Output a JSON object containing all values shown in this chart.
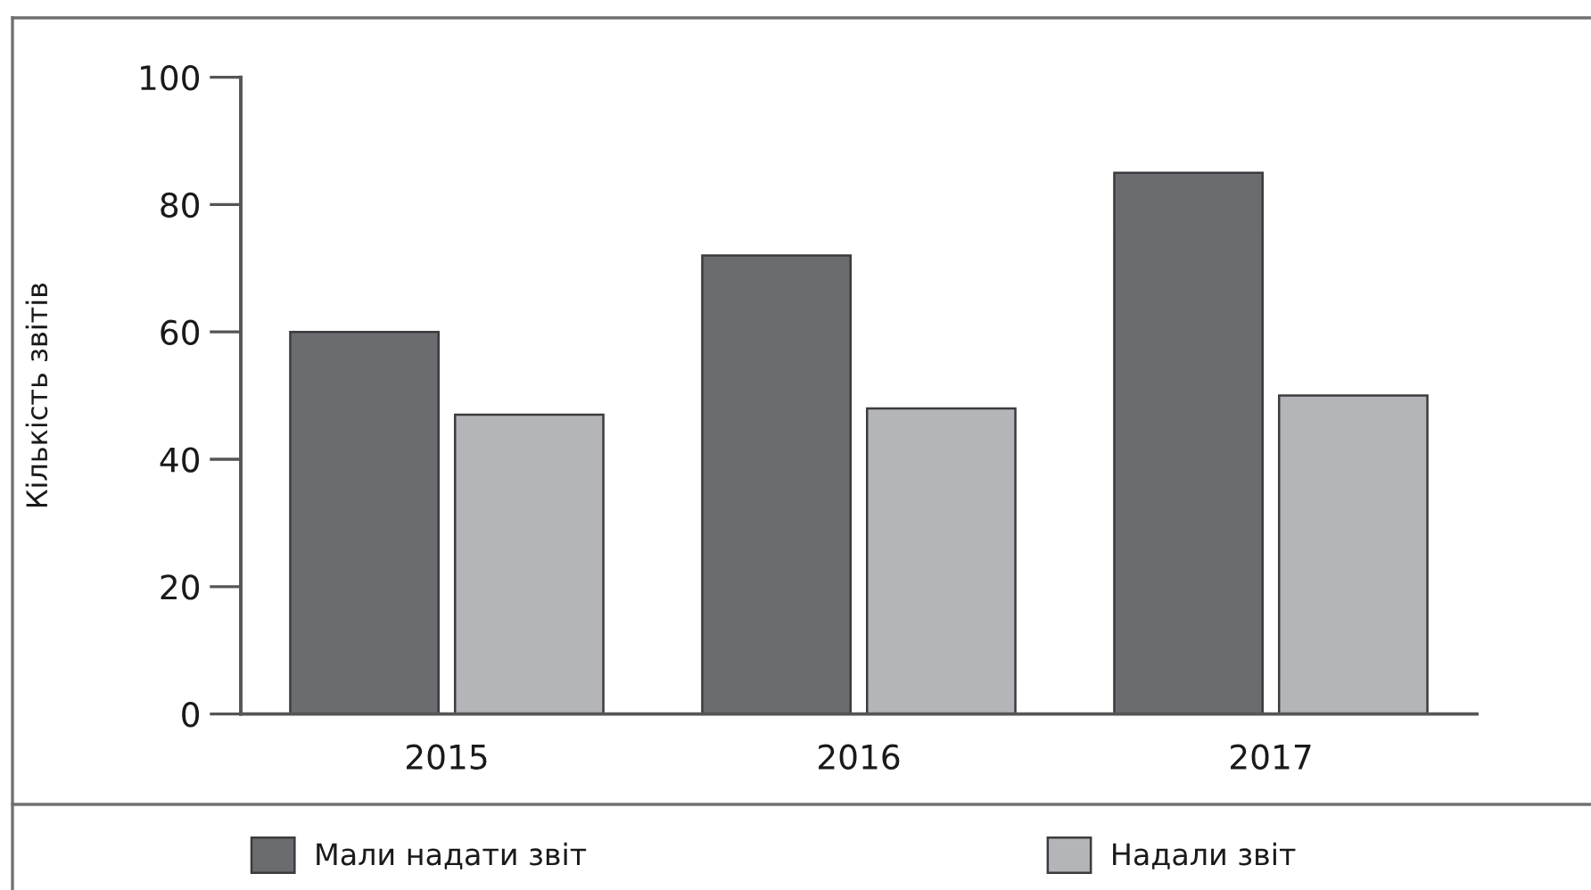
{
  "chart_data": {
    "type": "bar",
    "ylabel": "Кількість звітів",
    "categories": [
      "2015",
      "2016",
      "2017"
    ],
    "series": [
      {
        "name": "Мали надати звіт",
        "color": "#6b6c70",
        "values": [
          60,
          72,
          85
        ]
      },
      {
        "name": "Надали звіт",
        "color": "#b4b5b9",
        "values": [
          47,
          48,
          50
        ]
      }
    ],
    "ylim": [
      0,
      100
    ],
    "yticks": [
      0,
      20,
      40,
      60,
      80,
      100
    ],
    "grid": false,
    "legend": "bottom"
  }
}
